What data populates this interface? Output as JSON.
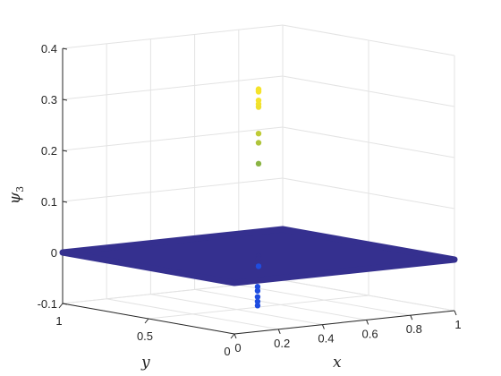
{
  "chart_data": {
    "type": "scatter",
    "title": "",
    "xlabel": "x",
    "ylabel": "y",
    "zlabel": {
      "base": "ψ",
      "sub": "3"
    },
    "xlim": [
      0,
      1
    ],
    "ylim": [
      0,
      1
    ],
    "zlim": [
      -0.1,
      0.4
    ],
    "grid": true,
    "x_ticks": [
      "0",
      "0.2",
      "0.4",
      "0.6",
      "0.8",
      "1"
    ],
    "y_ticks": [
      "0",
      "0.5",
      "1"
    ],
    "z_ticks": [
      "-0.1",
      "0",
      "0.1",
      "0.2",
      "0.3",
      "0.4"
    ],
    "colormap": "parula",
    "colors": {
      "low": "#1f4de0",
      "plane": "#35308f",
      "mid": "#6ea84a",
      "high": "#f5e32b"
    },
    "plane_value": 0,
    "points": [
      {
        "x": 0.5,
        "y": 0.5,
        "z": 0.327
      },
      {
        "x": 0.5,
        "y": 0.5,
        "z": 0.325
      },
      {
        "x": 0.5,
        "y": 0.5,
        "z": 0.322
      },
      {
        "x": 0.5,
        "y": 0.5,
        "z": 0.305
      },
      {
        "x": 0.5,
        "y": 0.5,
        "z": 0.298
      },
      {
        "x": 0.5,
        "y": 0.5,
        "z": 0.292
      },
      {
        "x": 0.5,
        "y": 0.5,
        "z": 0.24
      },
      {
        "x": 0.5,
        "y": 0.5,
        "z": 0.222
      },
      {
        "x": 0.5,
        "y": 0.5,
        "z": 0.181
      },
      {
        "x": 0.5,
        "y": 0.5,
        "z": 0.0
      },
      {
        "x": 0.5,
        "y": 0.5,
        "z": -0.005
      },
      {
        "x": 0.5,
        "y": 0.5,
        "z": -0.012
      },
      {
        "x": 0.5,
        "y": 0.5,
        "z": -0.02
      },
      {
        "x": 0.48,
        "y": 0.48,
        "z": -0.058
      },
      {
        "x": 0.48,
        "y": 0.48,
        "z": -0.066
      },
      {
        "x": 0.48,
        "y": 0.48,
        "z": -0.078
      },
      {
        "x": 0.48,
        "y": 0.48,
        "z": -0.087
      },
      {
        "x": 0.48,
        "y": 0.48,
        "z": -0.095
      }
    ]
  }
}
